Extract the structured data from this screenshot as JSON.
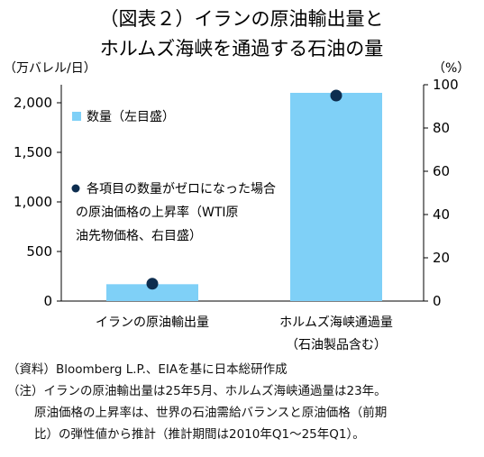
{
  "chart_data": {
    "type": "bar",
    "title_lines": [
      "（図表２）イランの原油輸出量と",
      "ホルムズ海峡を通過する石油の量"
    ],
    "ylabel_left": "（万バレル/日）",
    "ylabel_right": "（%）",
    "categories": [
      {
        "lines": [
          "イランの原油輸出量"
        ]
      },
      {
        "lines": [
          "ホルムズ海峡通過量",
          "（石油製品含む）"
        ]
      }
    ],
    "series": [
      {
        "name": "数量（左目盛）",
        "axis": "left",
        "kind": "bar",
        "values": [
          170,
          2100
        ],
        "color": "#7fd0f7"
      },
      {
        "name": "各項目の数量がゼロになった場合の原油価格の上昇率（WTI原油先物価格、右目盛）",
        "axis": "right",
        "kind": "point",
        "values": [
          8,
          95
        ],
        "color": "#0d2d4f"
      }
    ],
    "legend_lines_bar": [
      "数量（左目盛）"
    ],
    "legend_lines_point": [
      "各項目の数量がゼロになった場合",
      "の原油価格の上昇率（WTI原",
      "油先物価格、右目盛）"
    ],
    "ylim_left": [
      0,
      2000
    ],
    "yticks_left": [
      0,
      500,
      1000,
      1500,
      2000
    ],
    "yticks_left_labels": [
      "0",
      "500",
      "1,000",
      "1,500",
      "2,000"
    ],
    "ylim_right": [
      0,
      100
    ],
    "yticks_right": [
      0,
      20,
      40,
      60,
      80,
      100
    ],
    "yticks_right_labels": [
      "0",
      "20",
      "40",
      "60",
      "80",
      "100"
    ],
    "grid": false,
    "legend_position": "top-left"
  },
  "notes": {
    "source": "（資料）Bloomberg L.P.、EIAを基に日本総研作成",
    "note_line1": "（注）イランの原油輸出量は25年5月、ホルムズ海峡通過量は23年。",
    "note_line2": "原油価格の上昇率は、世界の石油需給バランスと原油価格（前期",
    "note_line3": "比）の弾性値から推計（推計期間は2010年Q1～25年Q1）。"
  }
}
